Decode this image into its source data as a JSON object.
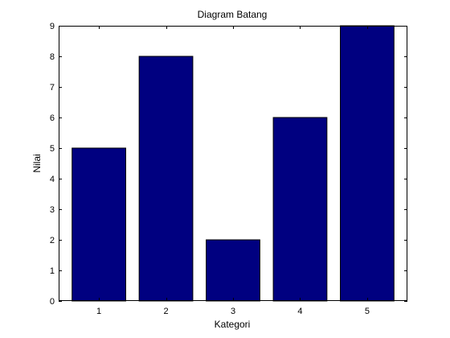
{
  "chart_data": {
    "type": "bar",
    "title": "Diagram Batang",
    "xlabel": "Kategori",
    "ylabel": "Nilai",
    "categories": [
      "1",
      "2",
      "3",
      "4",
      "5"
    ],
    "values": [
      5,
      8,
      2,
      6,
      9
    ],
    "ylim": [
      0,
      9
    ],
    "xlim": [
      0.4,
      5.6
    ],
    "yticks": [
      "0",
      "1",
      "2",
      "3",
      "4",
      "5",
      "6",
      "7",
      "8",
      "9"
    ],
    "grid": false,
    "legend": "none",
    "colors": {
      "bar_fill": "#000080",
      "bar_stroke": "#000000",
      "axis": "#000000",
      "background": "#ffffff"
    }
  }
}
